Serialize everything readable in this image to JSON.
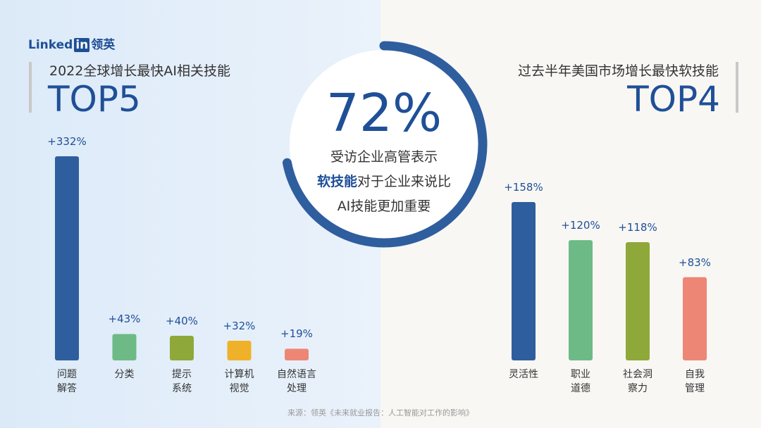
{
  "logo": {
    "word": "Linked",
    "box": "in",
    "cn": "领英"
  },
  "source": "来源：领英《未来就业报告：人工智能对工作的影响》",
  "chart_data": [
    {
      "type": "bar",
      "title": "2022全球增长最快AI相关技能",
      "subtitle": "TOP5",
      "categories": [
        "问题\n解答",
        "分类",
        "提示\n系统",
        "计算机\n视觉",
        "自然语言\n处理"
      ],
      "values": [
        332,
        43,
        40,
        32,
        19
      ],
      "value_labels": [
        "+332%",
        "+43%",
        "+40%",
        "+32%",
        "+19%"
      ],
      "colors": [
        "#2f5e9e",
        "#6dba86",
        "#8fa83a",
        "#f0b12a",
        "#ee8676"
      ]
    },
    {
      "type": "ring",
      "value": 72,
      "value_label": "72%",
      "lines": [
        "受访企业高管表示",
        "对于企业来说比",
        "AI技能更加重要"
      ],
      "highlight": "软技能",
      "color": "#2f5e9e"
    },
    {
      "type": "bar",
      "title": "过去半年美国市场增长最快软技能",
      "subtitle": "TOP4",
      "categories": [
        "灵活性",
        "职业\n道德",
        "社会洞\n察力",
        "自我\n管理"
      ],
      "values": [
        158,
        120,
        118,
        83
      ],
      "value_labels": [
        "+158%",
        "+120%",
        "+118%",
        "+83%"
      ],
      "colors": [
        "#2f5e9e",
        "#6dba86",
        "#8fa83a",
        "#ee8676"
      ]
    }
  ]
}
